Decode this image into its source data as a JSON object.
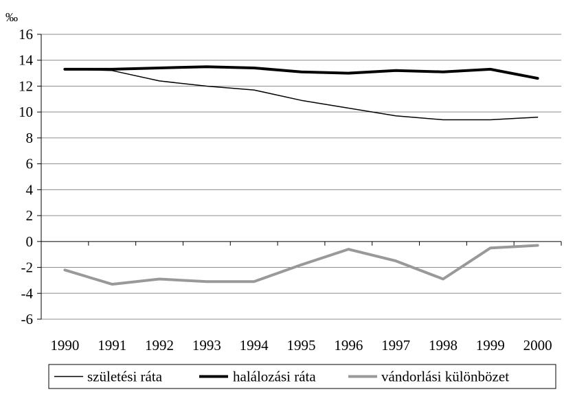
{
  "chart_data": {
    "type": "line",
    "unit_label": "‰",
    "categories": [
      "1990",
      "1991",
      "1992",
      "1993",
      "1994",
      "1995",
      "1996",
      "1997",
      "1998",
      "1999",
      "2000"
    ],
    "ylim": [
      -6,
      16
    ],
    "yticks": [
      16,
      14,
      12,
      10,
      8,
      6,
      4,
      2,
      0,
      -2,
      -4,
      -6
    ],
    "grid": true,
    "legend_position": "bottom",
    "series": [
      {
        "name": "születési ráta",
        "color": "#000000",
        "width": 1.5,
        "values": [
          13.3,
          13.2,
          12.4,
          12.0,
          11.7,
          10.9,
          10.3,
          9.7,
          9.4,
          9.4,
          9.6
        ]
      },
      {
        "name": "halálozási ráta",
        "color": "#000000",
        "width": 4,
        "values": [
          13.3,
          13.3,
          13.4,
          13.5,
          13.4,
          13.1,
          13.0,
          13.2,
          13.1,
          13.3,
          12.6
        ]
      },
      {
        "name": "vándorlási különbözet",
        "color": "#999999",
        "width": 4,
        "values": [
          -2.2,
          -3.3,
          -2.9,
          -3.1,
          -3.1,
          -1.8,
          -0.6,
          -1.5,
          -2.9,
          -0.5,
          -0.3
        ]
      }
    ]
  }
}
